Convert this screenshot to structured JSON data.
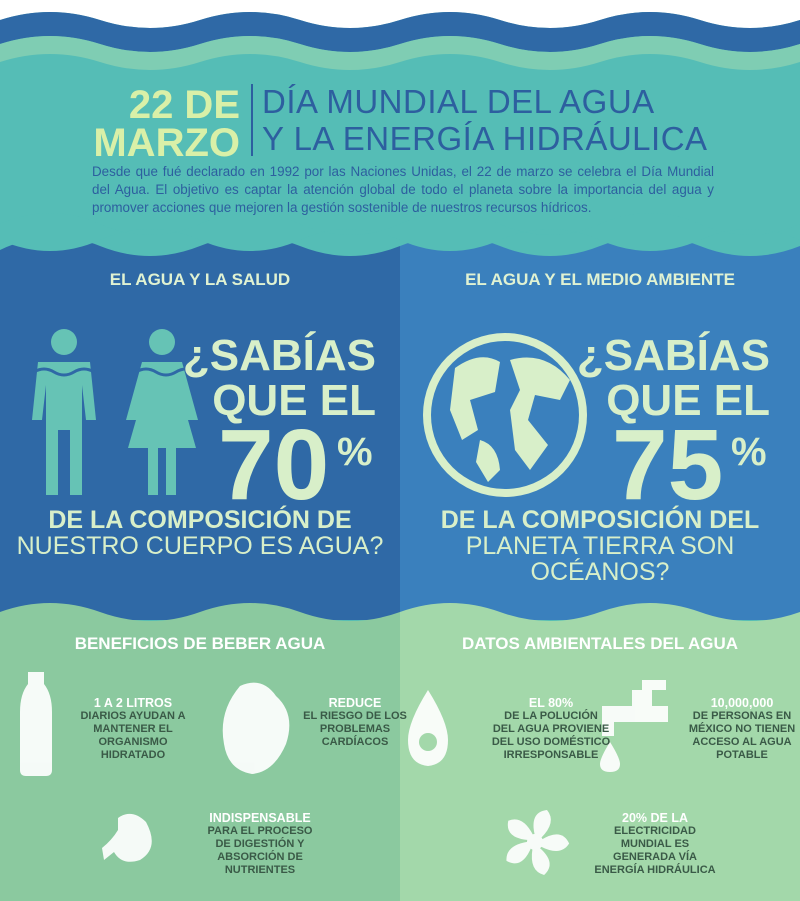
{
  "header": {
    "date": [
      "22 DE",
      "MARZO"
    ],
    "title": [
      "DÍA MUNDIAL DEL AGUA",
      "Y LA ENERGÍA HIDRÁULICA"
    ],
    "description": "Desde que fué declarado en 1992 por las Naciones Unidas, el 22 de marzo se celebra el Día Mundial del Agua. El objetivo es captar la atención global de todo el planeta sobre la importancia del agua y promover acciones que mejoren la gestión sostenible de nuestros recursos hídricos."
  },
  "panels": [
    {
      "heading": "EL AGUA Y LA SALUD",
      "question": [
        "¿SABÍAS",
        "QUE EL"
      ],
      "number": "70",
      "unit": "%",
      "tail": [
        "DE LA COMPOSICIÓN DE",
        "NUESTRO CUERPO ES AGUA?"
      ]
    },
    {
      "heading": "EL AGUA Y EL MEDIO AMBIENTE",
      "question": [
        "¿SABÍAS",
        "QUE EL"
      ],
      "number": "75",
      "unit": "%",
      "tail": [
        "DE LA COMPOSICIÓN DEL",
        "PLANETA TIERRA SON OCÉANOS?"
      ]
    }
  ],
  "sections": [
    {
      "heading": "BENEFICIOS DE BEBER AGUA",
      "facts": [
        {
          "highlight": "1 A 2 LITROS",
          "lines": [
            "DIARIOS AYUDAN A",
            "MANTENER EL",
            "ORGANISMO",
            "HIDRATADO"
          ]
        },
        {
          "highlight": "REDUCE",
          "lines": [
            "EL RIESGO DE LOS",
            "PROBLEMAS",
            "CARDÍACOS"
          ]
        },
        {
          "highlight": "INDISPENSABLE",
          "lines": [
            "PARA EL PROCESO",
            "DE DIGESTIÓN Y",
            "ABSORCIÓN DE",
            "NUTRIENTES"
          ]
        }
      ]
    },
    {
      "heading": "DATOS AMBIENTALES DEL AGUA",
      "facts": [
        {
          "highlight": "EL 80%",
          "lines": [
            "DE LA POLUCIÓN",
            "DEL AGUA PROVIENE",
            "DEL USO DOMÉSTICO",
            "IRRESPONSABLE"
          ]
        },
        {
          "highlight": "10,000,000",
          "lines": [
            "DE PERSONAS EN",
            "MÉXICO NO TIENEN",
            "ACCESO AL AGUA",
            "POTABLE"
          ]
        },
        {
          "highlight": "20% DE LA",
          "lines": [
            "ELECTRICIDAD",
            "MUNDIAL ES",
            "GENERADA VÍA",
            "ENERGÍA HIDRÁULICA"
          ]
        }
      ]
    }
  ]
}
